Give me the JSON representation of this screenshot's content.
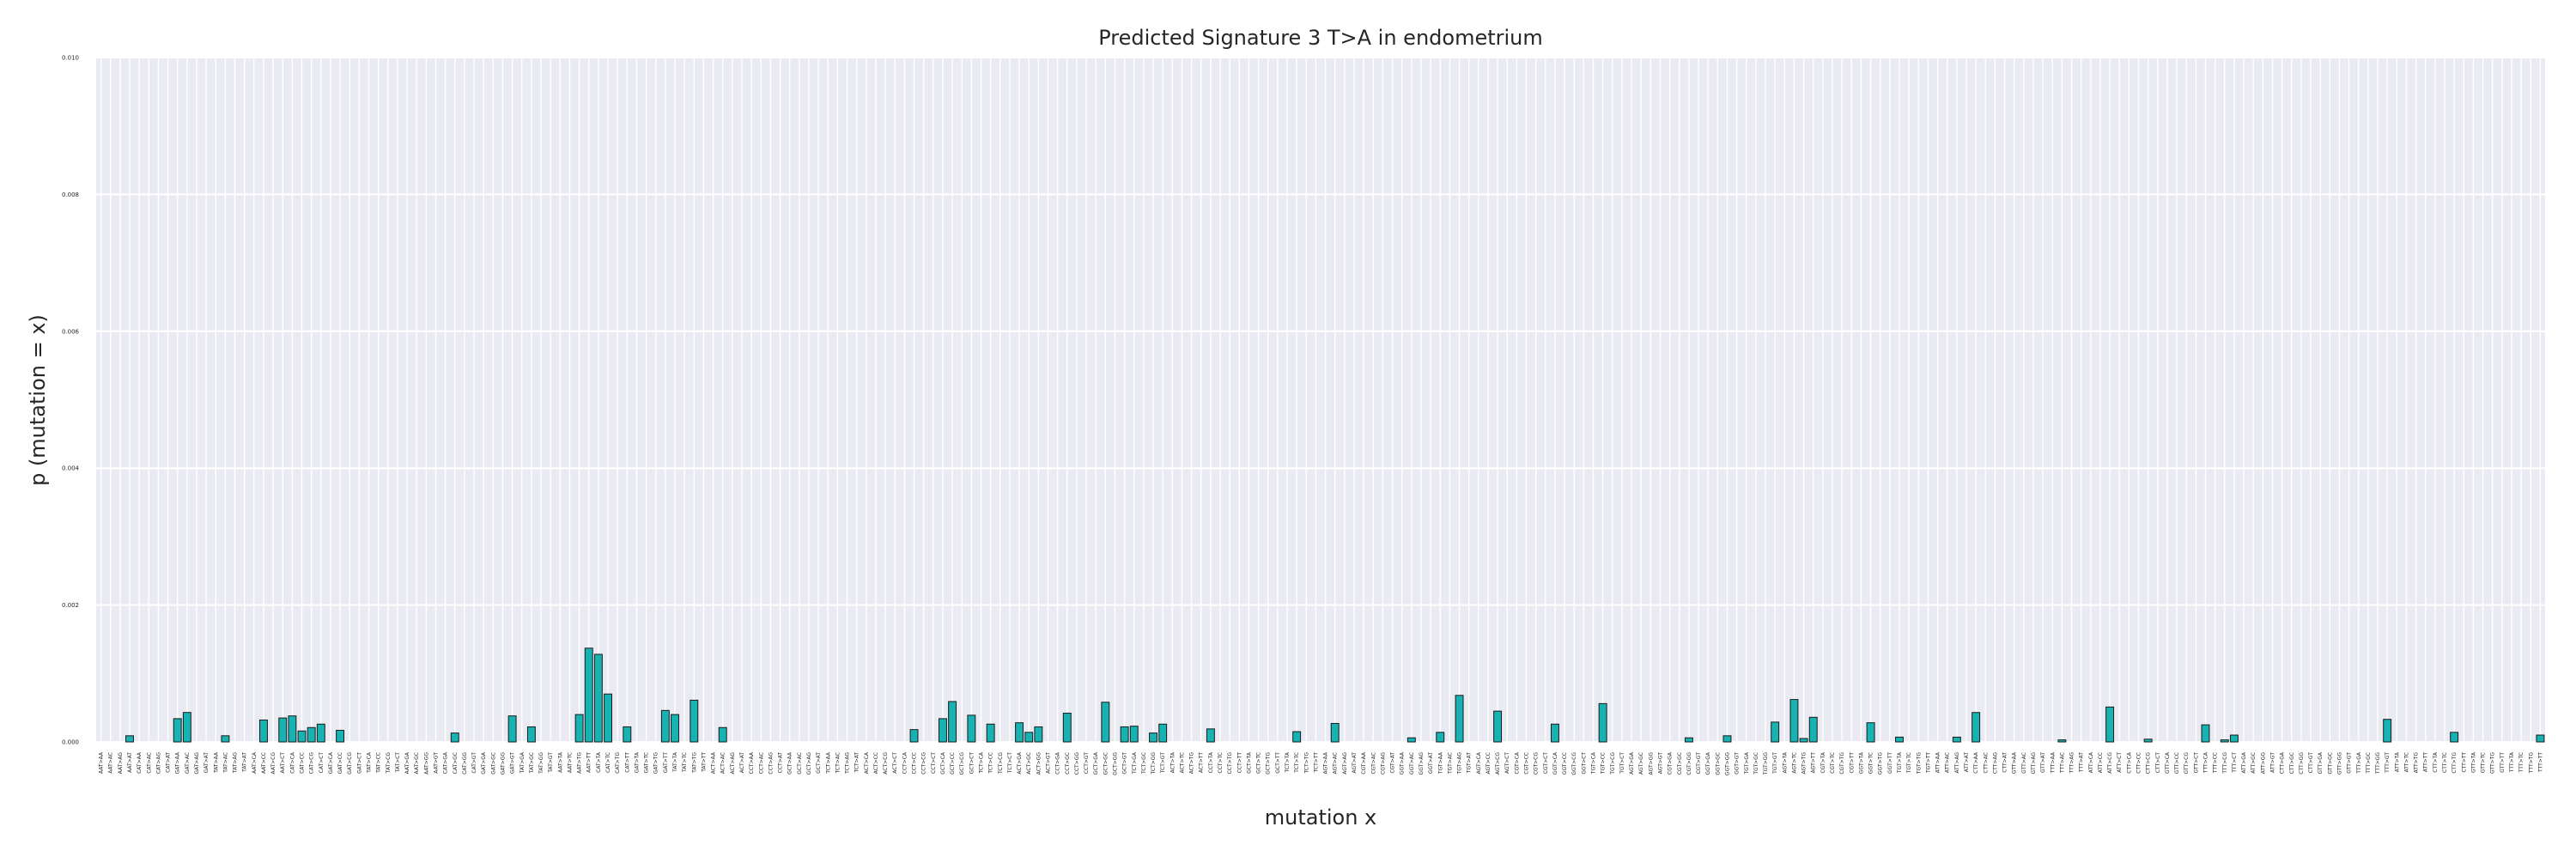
{
  "chart_data": {
    "type": "bar",
    "title": "Predicted Signature 3 T>A in endometrium",
    "xlabel": "mutation x",
    "ylabel": "p (mutation = x)",
    "ylim": [
      0,
      0.01
    ],
    "yticks": [
      "0.000",
      "0.002",
      "0.004",
      "0.006",
      "0.008",
      "0.010"
    ],
    "grid": true,
    "legend": "none",
    "colors": {
      "bar_fill": "#17b3b3",
      "bar_edge": "#1a1a1a",
      "plot_bg": "#eaeaf2",
      "grid": "#ffffff"
    },
    "categories": [
      "AATAA",
      "AATAC",
      "AATAG",
      "AATAT",
      "CATAA",
      "CATAC",
      "CATAG",
      "CATAT",
      "GATAA",
      "GATAC",
      "GATAG",
      "GATAT",
      "TATAA",
      "TATAC",
      "TATAG",
      "TATAT",
      "AATCA",
      "AATCC",
      "AATCG",
      "AATCT",
      "CATCA",
      "CATCC",
      "CATCG",
      "CATCT",
      "GATCA",
      "GATCC",
      "GATCG",
      "GATCT",
      "TATCA",
      "TATCC",
      "TATCG",
      "TATCT",
      "AATGA",
      "AATGC",
      "AATGG",
      "AATGT",
      "CATGA",
      "CATGC",
      "CATGG",
      "CATGT",
      "GATGA",
      "GATGC",
      "GATGG",
      "GATGT",
      "TATGA",
      "TATGC",
      "TATGG",
      "TATGT",
      "AATTA",
      "AATTC",
      "AATTG",
      "AATTT",
      "CATTA",
      "CATTC",
      "CATTG",
      "CATTT",
      "GATTA",
      "GATTC",
      "GATTG",
      "GATTT",
      "TATTA",
      "TATTC",
      "TATTG",
      "TATTT",
      "ACTAA",
      "ACTAC",
      "ACTAG",
      "ACTAT",
      "CCTAA",
      "CCTAC",
      "CCTAG",
      "CCTAT",
      "GCTAA",
      "GCTAC",
      "GCTAG",
      "GCTAT",
      "TCTAA",
      "TCTAC",
      "TCTAG",
      "TCTAT",
      "ACTCA",
      "ACTCC",
      "ACTCG",
      "ACTCT",
      "CCTCA",
      "CCTCC",
      "CCTCG",
      "CCTCT",
      "GCTCA",
      "GCTCC",
      "GCTCG",
      "GCTCT",
      "TCTCA",
      "TCTCC",
      "TCTCG",
      "TCTCT",
      "ACTGA",
      "ACTGC",
      "ACTGG",
      "ACTGT",
      "CCTGA",
      "CCTGC",
      "CCTGG",
      "CCTGT",
      "GCTGA",
      "GCTGC",
      "GCTGG",
      "GCTGT",
      "TCTGA",
      "TCTGC",
      "TCTGG",
      "TCTGT",
      "ACTTA",
      "ACTTC",
      "ACTTG",
      "ACTTT",
      "CCTTA",
      "CCTTC",
      "CCTTG",
      "CCTTT",
      "GCTTA",
      "GCTTC",
      "GCTTG",
      "GCTTT",
      "TCTTA",
      "TCTTC",
      "TCTTG",
      "TCTTT",
      "AGTAA",
      "AGTAC",
      "AGTAG",
      "AGTAT",
      "CGTAA",
      "CGTAC",
      "CGTAG",
      "CGTAT",
      "GGTAA",
      "GGTAC",
      "GGTAG",
      "GGTAT",
      "TGTAA",
      "TGTAC",
      "TGTAG",
      "TGTAT",
      "AGTCA",
      "AGTCC",
      "AGTCG",
      "AGTCT",
      "CGTCA",
      "CGTCC",
      "CGTCG",
      "CGTCT",
      "GGTCA",
      "GGTCC",
      "GGTCG",
      "GGTCT",
      "TGTCA",
      "TGTCC",
      "TGTCG",
      "TGTCT",
      "AGTGA",
      "AGTGC",
      "AGTGG",
      "AGTGT",
      "CGTGA",
      "CGTGC",
      "CGTGG",
      "CGTGT",
      "GGTGA",
      "GGTGC",
      "GGTGG",
      "GGTGT",
      "TGTGA",
      "TGTGC",
      "TGTGG",
      "TGTGT",
      "AGTTA",
      "AGTTC",
      "AGTTG",
      "AGTTT",
      "CGTTA",
      "CGTTC",
      "CGTTG",
      "CGTTT",
      "GGTTA",
      "GGTTC",
      "GGTTG",
      "GGTTT",
      "TGTTA",
      "TGTTC",
      "TGTTG",
      "TGTTT",
      "ATTAA",
      "ATTAC",
      "ATTAG",
      "ATTAT",
      "CTTAA",
      "CTTAC",
      "CTTAG",
      "CTTAT",
      "GTTAA",
      "GTTAC",
      "GTTAG",
      "GTTAT",
      "TTTAA",
      "TTTAC",
      "TTTAG",
      "TTTAT",
      "ATTCA",
      "ATTCC",
      "ATTCG",
      "ATTCT",
      "CTTCA",
      "CTTCC",
      "CTTCG",
      "CTTCT",
      "GTTCA",
      "GTTCC",
      "GTTCG",
      "GTTCT",
      "TTTCA",
      "TTTCC",
      "TTTCG",
      "TTTCT",
      "ATTGA",
      "ATTGC",
      "ATTGG",
      "ATTGT",
      "CTTGA",
      "CTTGC",
      "CTTGG",
      "CTTGT",
      "GTTGA",
      "GTTGC",
      "GTTGG",
      "GTTGT",
      "TTTGA",
      "TTTGC",
      "TTTGG",
      "TTTGT",
      "ATTTA",
      "ATTTC",
      "ATTTG",
      "ATTTT",
      "CTTTA",
      "CTTTC",
      "CTTTG",
      "CTTTT",
      "GTTTA",
      "GTTTC",
      "GTTTG",
      "GTTTT",
      "TTTTA",
      "TTTTC",
      "TTTTG",
      "TTTTT"
    ],
    "values": [
      0,
      0,
      0,
      9e-05,
      0,
      0,
      0,
      0,
      0.00034,
      0.00043,
      0,
      0,
      0,
      9e-05,
      0,
      0,
      0,
      0.00032,
      0,
      0.00035,
      0.00038,
      0.00016,
      0.00021,
      0.00026,
      0,
      0.00017,
      0,
      0,
      0,
      0,
      0,
      0,
      0,
      0,
      0,
      0,
      0,
      0.00013,
      0,
      0,
      0,
      0,
      0,
      0.00038,
      0,
      0.00022,
      0,
      0,
      0,
      0,
      0.0004,
      0.00137,
      0.00128,
      0.0007,
      0,
      0.00022,
      0,
      0,
      0,
      0.00046,
      0.0004,
      0,
      0.00061,
      0,
      0,
      0.00021,
      0,
      0,
      0,
      0,
      0,
      0,
      0,
      0,
      0,
      0,
      0,
      0,
      0,
      0,
      0,
      0,
      0,
      0,
      0,
      0.00018,
      0,
      0,
      0.00034,
      0.00059,
      0,
      0.00039,
      0,
      0.00026,
      0,
      0,
      0.00028,
      0.00014,
      0.00022,
      0,
      0,
      0.00042,
      0,
      0,
      0,
      0.00058,
      0,
      0.00022,
      0.00023,
      0,
      0.00013,
      0.00026,
      0,
      0,
      0,
      0,
      0.00019,
      0,
      0,
      0,
      0,
      0,
      0,
      0,
      0,
      0.00015,
      0,
      0,
      0,
      0.00027,
      0,
      0,
      0,
      0,
      0,
      0,
      0,
      6e-05,
      0,
      0,
      0.00014,
      0,
      0.00068,
      0,
      0,
      0,
      0.00045,
      0,
      0,
      0,
      0,
      0,
      0.00026,
      0,
      0,
      0,
      0,
      0.00056,
      0,
      0,
      0,
      0,
      0,
      0,
      0,
      0,
      6e-05,
      0,
      0,
      0,
      9e-05,
      0,
      0,
      0,
      0,
      0.00029,
      0,
      0.00062,
      5e-05,
      0.00036,
      0,
      0,
      0,
      0,
      0,
      0.00028,
      0,
      0,
      7e-05,
      0,
      0,
      0,
      0,
      0,
      7e-05,
      0,
      0.00043,
      0,
      0,
      0,
      0,
      0,
      0,
      0,
      0,
      3e-05,
      0,
      0,
      0,
      0,
      0.00051,
      0,
      0,
      0,
      4e-05,
      0,
      0,
      0,
      0,
      0,
      0.00025,
      0,
      3e-05,
      0.0001,
      0,
      0,
      0,
      0,
      0,
      0,
      0,
      0,
      0,
      0,
      0,
      0,
      0,
      0,
      0,
      0.00033,
      0,
      0,
      0,
      0,
      0,
      0,
      0.00014,
      0,
      0,
      0,
      0,
      0,
      0,
      0,
      0,
      0.0001
    ]
  }
}
